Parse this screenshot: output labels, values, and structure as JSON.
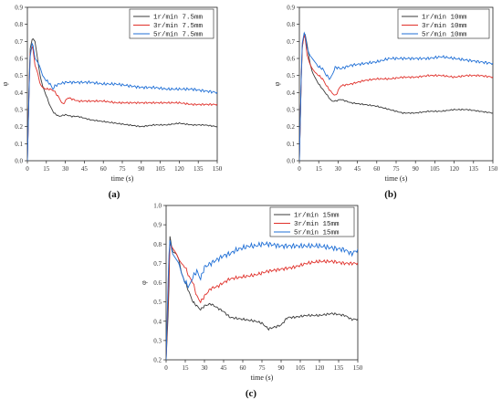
{
  "chart_data": [
    {
      "panel": "(a)",
      "type": "line",
      "xlabel": "time (s)",
      "ylabel": "φ",
      "xlim": [
        0,
        150
      ],
      "ylim": [
        0.0,
        0.9
      ],
      "xticks": [
        0,
        15,
        30,
        45,
        60,
        75,
        90,
        105,
        120,
        135,
        150
      ],
      "yticks": [
        0.0,
        0.1,
        0.2,
        0.3,
        0.4,
        0.5,
        0.6,
        0.7,
        0.8,
        0.9
      ],
      "legend_position": "top-right",
      "series": [
        {
          "name": "1r/min 7.5mm",
          "color": "#3a3a3a",
          "x": [
            0,
            2,
            4,
            6,
            8,
            10,
            12,
            15,
            18,
            21,
            25,
            30,
            35,
            40,
            45,
            50,
            60,
            70,
            80,
            90,
            100,
            110,
            120,
            130,
            140,
            150
          ],
          "y": [
            0.0,
            0.65,
            0.72,
            0.7,
            0.6,
            0.5,
            0.44,
            0.38,
            0.32,
            0.28,
            0.26,
            0.27,
            0.26,
            0.26,
            0.25,
            0.24,
            0.23,
            0.22,
            0.21,
            0.2,
            0.21,
            0.21,
            0.22,
            0.21,
            0.21,
            0.2
          ]
        },
        {
          "name": "3r/min 7.5mm",
          "color": "#e0302a",
          "x": [
            0,
            2,
            4,
            6,
            8,
            10,
            12,
            15,
            18,
            21,
            25,
            28,
            32,
            40,
            50,
            60,
            70,
            80,
            90,
            100,
            110,
            120,
            130,
            140,
            150
          ],
          "y": [
            0.0,
            0.62,
            0.68,
            0.56,
            0.52,
            0.45,
            0.43,
            0.42,
            0.42,
            0.41,
            0.37,
            0.33,
            0.37,
            0.35,
            0.35,
            0.35,
            0.34,
            0.34,
            0.34,
            0.34,
            0.34,
            0.34,
            0.33,
            0.33,
            0.33
          ]
        },
        {
          "name": "5r/min 7.5mm",
          "color": "#1f6fd6",
          "x": [
            0,
            2,
            4,
            6,
            8,
            10,
            12,
            15,
            18,
            20,
            22,
            25,
            30,
            35,
            40,
            50,
            60,
            70,
            80,
            90,
            100,
            110,
            120,
            130,
            140,
            150
          ],
          "y": [
            0.0,
            0.6,
            0.7,
            0.6,
            0.58,
            0.55,
            0.5,
            0.47,
            0.45,
            0.42,
            0.44,
            0.45,
            0.46,
            0.46,
            0.46,
            0.46,
            0.45,
            0.45,
            0.44,
            0.43,
            0.43,
            0.42,
            0.42,
            0.42,
            0.41,
            0.4
          ]
        }
      ]
    },
    {
      "panel": "(b)",
      "type": "line",
      "xlabel": "time (s)",
      "ylabel": "φ",
      "xlim": [
        0,
        150
      ],
      "ylim": [
        0.0,
        0.9
      ],
      "xticks": [
        0,
        15,
        30,
        45,
        60,
        75,
        90,
        105,
        120,
        135,
        150
      ],
      "yticks": [
        0.0,
        0.1,
        0.2,
        0.3,
        0.4,
        0.5,
        0.6,
        0.7,
        0.8,
        0.9
      ],
      "legend_position": "top-right",
      "series": [
        {
          "name": "1r/min  10mm",
          "color": "#3a3a3a",
          "x": [
            0,
            2,
            4,
            6,
            8,
            10,
            12,
            15,
            18,
            21,
            25,
            28,
            32,
            40,
            50,
            60,
            70,
            80,
            90,
            100,
            110,
            120,
            130,
            140,
            150
          ],
          "y": [
            0.0,
            0.65,
            0.76,
            0.68,
            0.58,
            0.52,
            0.49,
            0.45,
            0.42,
            0.39,
            0.35,
            0.35,
            0.36,
            0.34,
            0.33,
            0.32,
            0.3,
            0.28,
            0.28,
            0.29,
            0.29,
            0.3,
            0.3,
            0.29,
            0.28
          ]
        },
        {
          "name": "3r/min  10mm",
          "color": "#e0302a",
          "x": [
            0,
            2,
            4,
            6,
            8,
            10,
            12,
            15,
            18,
            21,
            25,
            28,
            32,
            40,
            50,
            60,
            70,
            80,
            90,
            100,
            110,
            120,
            130,
            140,
            150
          ],
          "y": [
            0.0,
            0.66,
            0.75,
            0.62,
            0.57,
            0.54,
            0.52,
            0.5,
            0.48,
            0.44,
            0.4,
            0.38,
            0.44,
            0.45,
            0.47,
            0.48,
            0.48,
            0.49,
            0.49,
            0.5,
            0.5,
            0.49,
            0.5,
            0.5,
            0.49
          ]
        },
        {
          "name": "5r/min  10mm",
          "color": "#1f6fd6",
          "x": [
            0,
            2,
            4,
            6,
            8,
            10,
            12,
            15,
            18,
            21,
            24,
            28,
            32,
            40,
            50,
            60,
            70,
            80,
            90,
            100,
            110,
            120,
            130,
            140,
            150
          ],
          "y": [
            0.0,
            0.68,
            0.76,
            0.66,
            0.62,
            0.6,
            0.58,
            0.55,
            0.54,
            0.5,
            0.48,
            0.55,
            0.54,
            0.56,
            0.57,
            0.58,
            0.6,
            0.6,
            0.6,
            0.6,
            0.61,
            0.6,
            0.59,
            0.58,
            0.57
          ]
        }
      ]
    },
    {
      "panel": "(c)",
      "type": "line",
      "xlabel": "time (s)",
      "ylabel": "φ",
      "xlim": [
        0,
        150
      ],
      "ylim": [
        0.2,
        1.0
      ],
      "xticks": [
        0,
        15,
        30,
        45,
        60,
        75,
        90,
        105,
        120,
        135,
        150
      ],
      "yticks": [
        0.2,
        0.3,
        0.4,
        0.5,
        0.6,
        0.7,
        0.8,
        0.9,
        1.0
      ],
      "legend_position": "top-right",
      "series": [
        {
          "name": "1r/min 15mm",
          "color": "#3a3a3a",
          "x": [
            0,
            2,
            3,
            5,
            8,
            10,
            12,
            15,
            18,
            21,
            24,
            27,
            30,
            35,
            40,
            45,
            50,
            60,
            70,
            75,
            80,
            85,
            90,
            95,
            100,
            110,
            120,
            130,
            140,
            145,
            150
          ],
          "y": [
            0.2,
            0.5,
            0.84,
            0.76,
            0.75,
            0.72,
            0.65,
            0.6,
            0.55,
            0.5,
            0.48,
            0.46,
            0.48,
            0.49,
            0.47,
            0.45,
            0.42,
            0.41,
            0.4,
            0.39,
            0.36,
            0.37,
            0.38,
            0.42,
            0.42,
            0.43,
            0.43,
            0.44,
            0.43,
            0.41,
            0.41
          ]
        },
        {
          "name": "3r/min 15mm",
          "color": "#e0302a",
          "x": [
            0,
            2,
            3,
            5,
            8,
            10,
            12,
            15,
            18,
            21,
            24,
            27,
            30,
            35,
            40,
            45,
            50,
            60,
            70,
            80,
            90,
            100,
            110,
            120,
            130,
            140,
            150
          ],
          "y": [
            0.2,
            0.6,
            0.8,
            0.78,
            0.75,
            0.72,
            0.7,
            0.68,
            0.63,
            0.6,
            0.53,
            0.5,
            0.53,
            0.57,
            0.58,
            0.6,
            0.62,
            0.63,
            0.64,
            0.66,
            0.67,
            0.68,
            0.7,
            0.71,
            0.71,
            0.7,
            0.7
          ]
        },
        {
          "name": "5r/min 15mm",
          "color": "#1f6fd6",
          "x": [
            0,
            2,
            3,
            5,
            8,
            10,
            12,
            15,
            18,
            21,
            24,
            27,
            30,
            35,
            40,
            45,
            50,
            55,
            60,
            65,
            70,
            75,
            80,
            90,
            100,
            110,
            120,
            130,
            140,
            145,
            150
          ],
          "y": [
            0.2,
            0.72,
            0.82,
            0.75,
            0.72,
            0.7,
            0.65,
            0.6,
            0.58,
            0.63,
            0.66,
            0.62,
            0.68,
            0.7,
            0.72,
            0.74,
            0.75,
            0.77,
            0.78,
            0.79,
            0.79,
            0.8,
            0.8,
            0.79,
            0.79,
            0.79,
            0.79,
            0.78,
            0.77,
            0.75,
            0.77
          ]
        }
      ]
    }
  ]
}
